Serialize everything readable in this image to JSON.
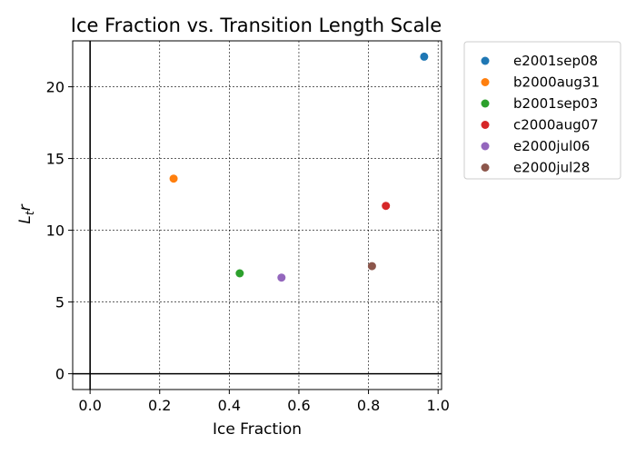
{
  "chart_data": {
    "type": "scatter",
    "title": "Ice Fraction vs. Transition Length Scale",
    "xlabel": "Ice Fraction",
    "ylabel_main": "L",
    "ylabel_sub": "t",
    "ylabel_tail": "r",
    "xlim": [
      -0.05,
      1.01
    ],
    "ylim": [
      -1.1,
      23.2
    ],
    "xticks": [
      0.0,
      0.2,
      0.4,
      0.6,
      0.8,
      1.0
    ],
    "xtick_labels": [
      "0.0",
      "0.2",
      "0.4",
      "0.6",
      "0.8",
      "1.0"
    ],
    "yticks": [
      0,
      5,
      10,
      15,
      20
    ],
    "ytick_labels": [
      "0",
      "5",
      "10",
      "15",
      "20"
    ],
    "grid": true,
    "grid_style": "dashed",
    "zero_lines": true,
    "legend_position": "outside-upper-right",
    "series": [
      {
        "name": "e2001sep08",
        "color": "#1f77b4",
        "points": [
          [
            0.96,
            22.1
          ]
        ]
      },
      {
        "name": "b2000aug31",
        "color": "#ff7f0e",
        "points": [
          [
            0.24,
            13.6
          ]
        ]
      },
      {
        "name": "b2001sep03",
        "color": "#2ca02c",
        "points": [
          [
            0.43,
            7.0
          ]
        ]
      },
      {
        "name": "c2000aug07",
        "color": "#d62728",
        "points": [
          [
            0.85,
            11.7
          ]
        ]
      },
      {
        "name": "e2000jul06",
        "color": "#9467bd",
        "points": [
          [
            0.55,
            6.7
          ]
        ]
      },
      {
        "name": "e2000jul28",
        "color": "#8c564b",
        "points": [
          [
            0.81,
            7.5
          ]
        ]
      }
    ]
  }
}
